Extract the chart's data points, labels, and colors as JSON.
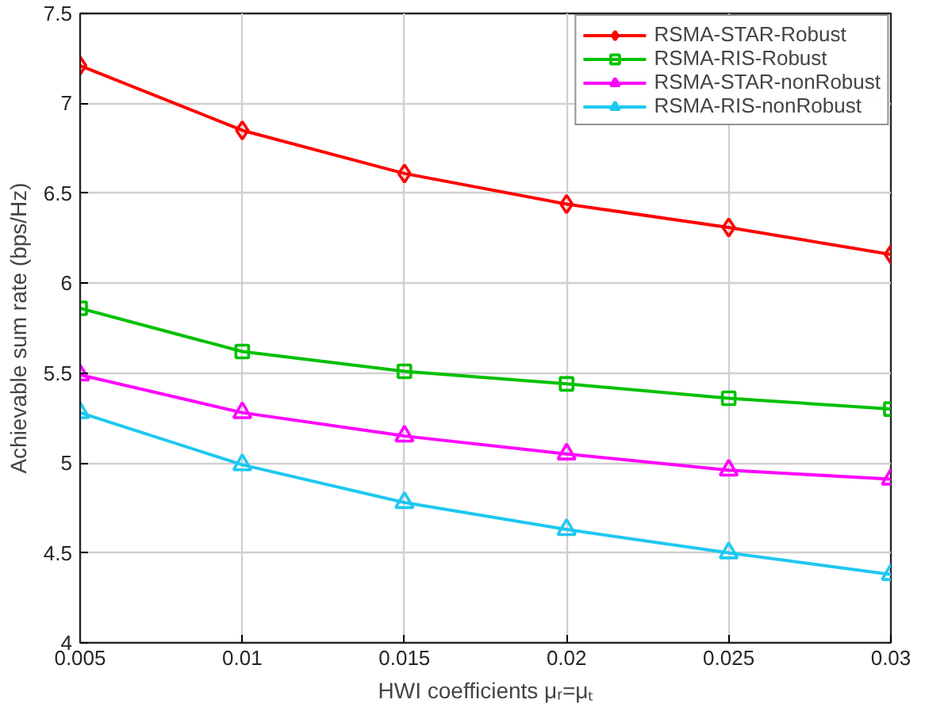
{
  "chart_data": {
    "type": "line",
    "xlabel": "HWI coefficients μᵣ=μₜ",
    "ylabel": "Achievable sum rate (bps/Hz)",
    "x": [
      0.005,
      0.01,
      0.015,
      0.02,
      0.025,
      0.03
    ],
    "series": [
      {
        "name": "RSMA-STAR-Robust",
        "color": "#ff0000",
        "marker": "diamond",
        "values": [
          7.21,
          6.85,
          6.61,
          6.44,
          6.31,
          6.16
        ]
      },
      {
        "name": "RSMA-RIS-Robust",
        "color": "#00c000",
        "marker": "square",
        "values": [
          5.86,
          5.62,
          5.51,
          5.44,
          5.36,
          5.3
        ]
      },
      {
        "name": "RSMA-STAR-nonRobust",
        "color": "#ff00ff",
        "marker": "triangle",
        "values": [
          5.49,
          5.28,
          5.15,
          5.05,
          4.96,
          4.91
        ]
      },
      {
        "name": "RSMA-RIS-nonRobust",
        "color": "#1ec8f0",
        "marker": "triangle",
        "values": [
          5.28,
          4.99,
          4.78,
          4.63,
          4.5,
          4.38
        ]
      }
    ],
    "xlim": [
      0.005,
      0.03
    ],
    "xticks": [
      0.005,
      0.01,
      0.015,
      0.02,
      0.025,
      0.03
    ],
    "ylim": [
      4,
      7.5
    ],
    "yticks": [
      4,
      4.5,
      5,
      5.5,
      6,
      6.5,
      7,
      7.5
    ],
    "grid": true,
    "legend": "top right",
    "line_style": "solid"
  }
}
